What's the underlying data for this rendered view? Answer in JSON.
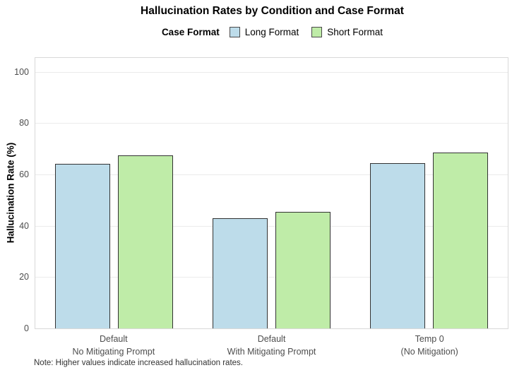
{
  "title": "Hallucination Rates by Condition and Case Format",
  "legend": {
    "title": "Case Format"
  },
  "note": "Note: Higher values indicate increased hallucination rates.",
  "chart_data": {
    "type": "bar",
    "title": "Hallucination Rates by Condition and Case Format",
    "categories": [
      "Default\nNo Mitigating Prompt",
      "Default\nWith Mitigating Prompt",
      "Temp 0\n(No Mitigation)"
    ],
    "series": [
      {
        "name": "Long Format",
        "color": "#bddcea",
        "values": [
          64,
          43,
          64.5
        ]
      },
      {
        "name": "Short Format",
        "color": "#bfeca8",
        "values": [
          67.5,
          45.3,
          68.4
        ]
      }
    ],
    "xlabel": "",
    "ylabel": "Hallucination Rate (%)",
    "yticks": [
      0,
      20,
      40,
      60,
      80,
      100
    ],
    "ylim": [
      0,
      105.4
    ],
    "grid": "horizontal-major-only",
    "legend_position": "top",
    "legend_title": "Case Format",
    "annotation": "Note: Higher values indicate increased hallucination rates.",
    "colors": {
      "bar_border": "#333333",
      "gridline": "#ebebeb",
      "panel_border": "#d9d9d9",
      "axis_text": "#4d4d4d",
      "background": "#ffffff"
    }
  }
}
